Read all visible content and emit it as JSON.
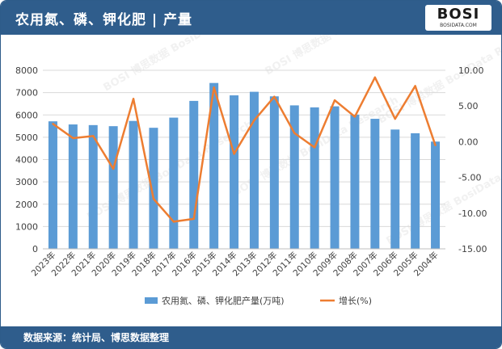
{
  "header": {
    "title": "农用氮、磷、钾化肥 | 产量",
    "logo_text": "BOSI",
    "logo_url_text": "BOSIDATA.COM"
  },
  "footer": {
    "source": "数据来源：统计局、博思数据整理"
  },
  "chart_data": {
    "type": "bar+line",
    "categories": [
      "2023年",
      "2022年",
      "2021年",
      "2020年",
      "2019年",
      "2018年",
      "2017年",
      "2016年",
      "2015年",
      "2014年",
      "2013年",
      "2012年",
      "2011年",
      "2010年",
      "2009年",
      "2008年",
      "2007年",
      "2006年",
      "2005年",
      "2004年"
    ],
    "series": [
      {
        "name": "农用氮、磷、钾化肥产量(万吨)",
        "type": "bar",
        "axis": "left",
        "values": [
          5713,
          5573,
          5544,
          5496,
          5731,
          5424,
          5879,
          6628,
          7432,
          6877,
          7037,
          6832,
          6428,
          6338,
          6385,
          6013,
          5826,
          5345,
          5178,
          4805
        ]
      },
      {
        "name": "增长(%)",
        "type": "line",
        "axis": "right",
        "values": [
          2.5,
          0.5,
          0.8,
          -3.8,
          6.0,
          -8.0,
          -11.2,
          -10.8,
          7.6,
          -1.7,
          3.0,
          6.3,
          1.2,
          -0.8,
          5.8,
          3.5,
          9.0,
          3.2,
          7.8,
          -0.5
        ]
      }
    ],
    "ylim_left": [
      0,
      8000
    ],
    "yticks_left": [
      "0",
      "1000",
      "2000",
      "3000",
      "4000",
      "5000",
      "6000",
      "7000",
      "8000"
    ],
    "ylim_right": [
      -15,
      10
    ],
    "yticks_right": [
      "-15.00",
      "-10.00",
      "-5.00",
      "0.00",
      "5.00",
      "10.00"
    ],
    "legend": "bottom-center",
    "watermark": "BOSI 博思数据 BosiData Research",
    "colors": {
      "bar": "#5b9bd5",
      "line": "#ed7d31",
      "header": "#2f5d8c",
      "grid": "#d9d9d9"
    }
  }
}
